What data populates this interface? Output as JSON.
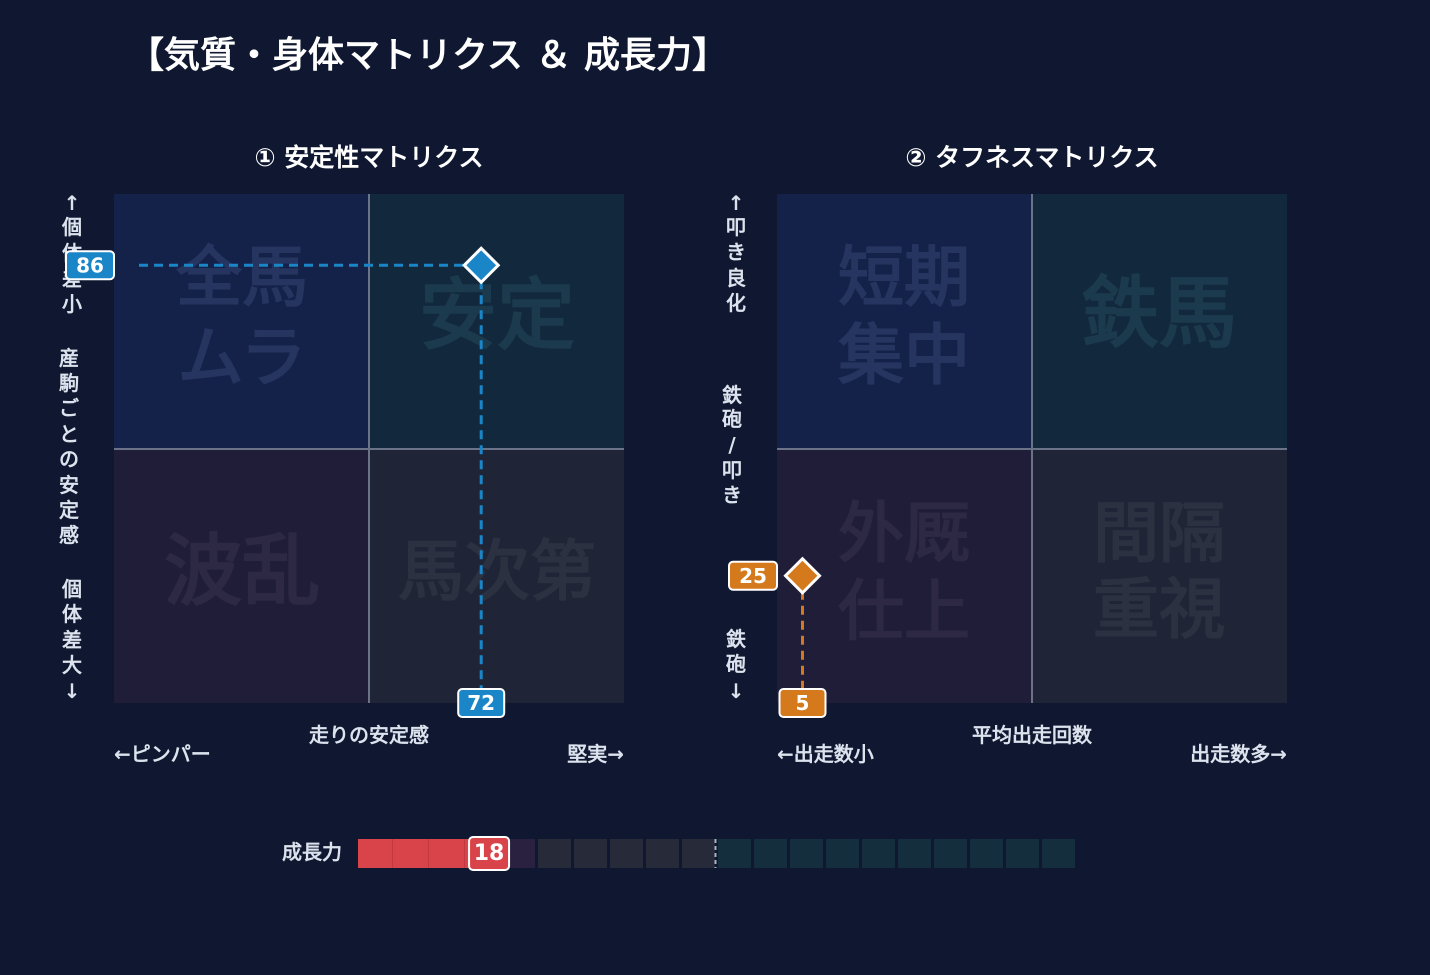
{
  "title": "【気質・身体マトリクス ＆ 成長力】",
  "colors": {
    "background": "#0f1830",
    "blue_marker": "#1a86c8",
    "orange_marker": "#d4791c",
    "growth_fill": "#d9444a"
  },
  "chart_data": [
    {
      "type": "scatter",
      "title": "① 安定性マトリクス",
      "xlabel": "走りの安定感",
      "x_left_label": "←ピンパー",
      "x_right_label": "堅実→",
      "y_label_top": "↑個体差小",
      "y_label_mid": "産駒ごとの安定感",
      "y_label_bottom": "個体差大↓",
      "xlim": [
        0,
        100
      ],
      "ylim": [
        0,
        100
      ],
      "quadrants": {
        "top_left": "全馬ムラ",
        "top_right": "安定",
        "bottom_left": "波乱",
        "bottom_right": "馬次第"
      },
      "point": {
        "x": 72,
        "y": 86
      },
      "x_value_label": "72",
      "y_value_label": "86",
      "marker_color": "#1a86c8"
    },
    {
      "type": "scatter",
      "title": "② タフネスマトリクス",
      "xlabel": "平均出走回数",
      "x_left_label": "←出走数小",
      "x_right_label": "出走数多→",
      "y_label_top": "↑叩き良化",
      "y_label_mid": "鉄砲/叩き",
      "y_label_bottom": "鉄砲↓",
      "xlim": [
        0,
        100
      ],
      "ylim": [
        0,
        100
      ],
      "quadrants": {
        "top_left": "短期集中",
        "top_right": "鉄馬",
        "bottom_left": "外厩仕上",
        "bottom_right": "間隔重視"
      },
      "point": {
        "x": 5,
        "y": 25
      },
      "x_value_label": "5",
      "y_value_label": "25",
      "marker_color": "#d4791c"
    },
    {
      "type": "bar",
      "label": "成長力",
      "value": 18,
      "value_label": "18",
      "max": 100,
      "segments": 20
    }
  ]
}
